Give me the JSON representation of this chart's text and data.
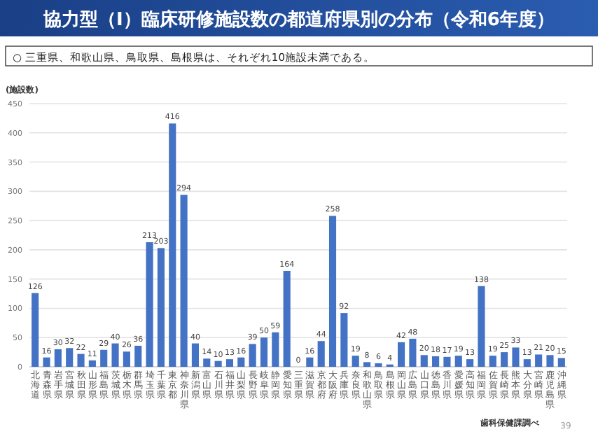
{
  "chart_data": {
    "type": "bar",
    "title": "協力型（Ⅰ）臨床研修施設数の都道府県別の分布（令和6年度）",
    "subtitle": "○ 三重県、和歌山県、鳥取県、島根県は、それぞれ10施設未満である。",
    "ylabel": "(施設数)",
    "categories": [
      "北海道",
      "青森県",
      "岩手県",
      "宮城県",
      "秋田県",
      "山形県",
      "福島県",
      "茨城県",
      "栃木県",
      "群馬県",
      "埼玉県",
      "千葉県",
      "東京都",
      "神奈川県",
      "新潟県",
      "富山県",
      "石川県",
      "福井県",
      "山梨県",
      "長野県",
      "岐阜県",
      "静岡県",
      "愛知県",
      "三重県",
      "滋賀県",
      "京都府",
      "大阪府",
      "兵庫県",
      "奈良県",
      "和歌山県",
      "鳥取県",
      "島根県",
      "岡山県",
      "広島県",
      "山口県",
      "徳島県",
      "香川県",
      "愛媛県",
      "高知県",
      "福岡県",
      "佐賀県",
      "長崎県",
      "熊本県",
      "大分県",
      "宮崎県",
      "鹿児島県",
      "沖縄県"
    ],
    "values": [
      126,
      16,
      30,
      32,
      22,
      11,
      29,
      40,
      26,
      36,
      213,
      203,
      416,
      294,
      40,
      14,
      10,
      13,
      16,
      39,
      50,
      59,
      164,
      0,
      16,
      44,
      258,
      92,
      19,
      8,
      6,
      4,
      42,
      48,
      20,
      18,
      17,
      19,
      13,
      138,
      19,
      25,
      33,
      13,
      21,
      20,
      15
    ],
    "color": "#4472c4",
    "ylim": [
      0,
      450
    ],
    "yticks": [
      0,
      50,
      100,
      150,
      200,
      250,
      300,
      350,
      400,
      450
    ],
    "grid": "y",
    "data_labels": true,
    "annotations": [
      "歯科保健課調べ",
      "39"
    ]
  }
}
